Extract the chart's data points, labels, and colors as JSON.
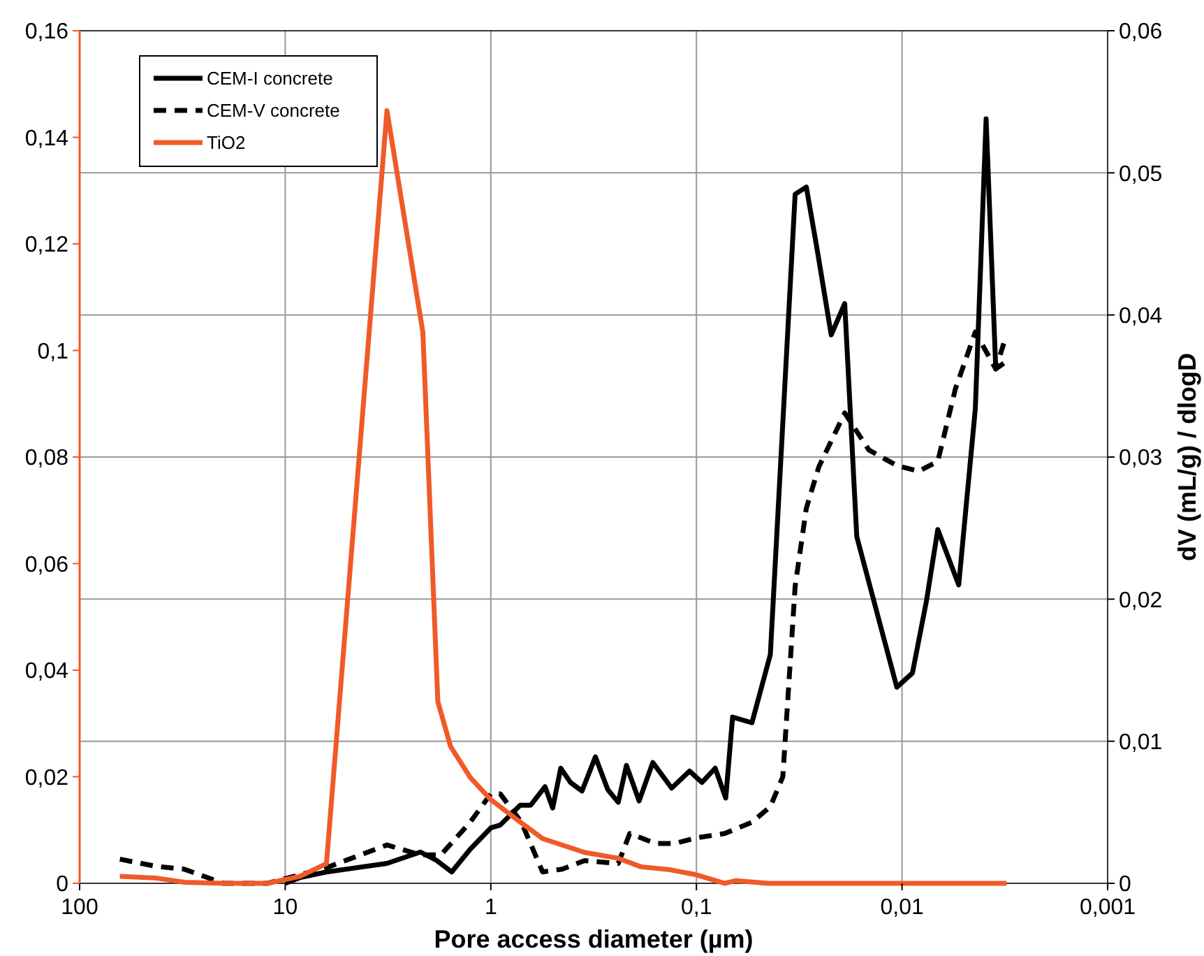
{
  "chart_data": {
    "type": "line",
    "xlabel": "Pore access diameter (µm)",
    "y2label": "dV (mL/g) / dlogD",
    "log": "x",
    "grid": true,
    "legend": "top left",
    "xlim": [
      100,
      0.001
    ],
    "xticks": [
      100,
      10,
      1,
      {
        "value": 0.1,
        "label": "0,1"
      },
      {
        "value": 0.01,
        "label": "0,01"
      },
      {
        "value": 0.001,
        "label": "0,001"
      }
    ],
    "ylim": [
      0,
      0.16
    ],
    "yticks": [
      0,
      {
        "value": 0.02,
        "label": "0,02"
      },
      {
        "value": 0.04,
        "label": "0,04"
      },
      {
        "value": 0.06,
        "label": "0,06"
      },
      {
        "value": 0.08,
        "label": "0,08"
      },
      {
        "value": 0.1,
        "label": "0,1"
      },
      {
        "value": 0.12,
        "label": "0,12"
      },
      {
        "value": 0.14,
        "label": "0,14"
      },
      {
        "value": 0.16,
        "label": "0,16"
      }
    ],
    "y2lim": [
      0,
      0.06
    ],
    "y2ticks": [
      0,
      {
        "value": 0.01,
        "label": "0,01"
      },
      {
        "value": 0.02,
        "label": "0,02"
      },
      {
        "value": 0.03,
        "label": "0,03"
      },
      {
        "value": 0.04,
        "label": "0,04"
      },
      {
        "value": 0.05,
        "label": "0,05"
      },
      {
        "value": 0.06,
        "label": "0,06"
      }
    ],
    "series": [
      {
        "name": "CEM-I concrete",
        "color": "#000000",
        "axis": "y2",
        "line_style": "solid",
        "x": [
          10,
          8.5,
          6.3,
          3.2,
          2.2,
          1.83,
          1.55,
          1.26,
          1.0,
          0.9,
          0.72,
          0.64,
          0.545,
          0.5,
          0.457,
          0.41,
          0.36,
          0.31,
          0.27,
          0.24,
          0.219,
          0.19,
          0.163,
          0.132,
          0.108,
          0.094,
          0.081,
          0.072,
          0.0667,
          0.0537,
          0.0437,
          0.0331,
          0.0292,
          0.0258,
          0.0221,
          0.019,
          0.0166,
          0.0106,
          0.0089,
          0.0076,
          0.0067,
          0.0053,
          0.0044,
          0.0039,
          0.0035,
          0.0032
        ],
        "values": [
          0,
          0.0004,
          0.0008,
          0.0014,
          0.0022,
          0.0016,
          0.0008,
          0.0024,
          0.0039,
          0.0041,
          0.0055,
          0.0055,
          0.0068,
          0.0053,
          0.0081,
          0.0071,
          0.0065,
          0.0089,
          0.0066,
          0.0057,
          0.0083,
          0.0058,
          0.0085,
          0.0067,
          0.0079,
          0.0071,
          0.0081,
          0.006,
          0.0117,
          0.0113,
          0.0161,
          0.0485,
          0.049,
          0.0445,
          0.0386,
          0.0408,
          0.0244,
          0.0138,
          0.0148,
          0.0199,
          0.0249,
          0.021,
          0.0334,
          0.0538,
          0.0362,
          0.0366
        ]
      },
      {
        "name": "CEM-V concrete",
        "color": "#000000",
        "axis": "y2",
        "line_style": "dashed",
        "x": [
          63.7,
          42.7,
          31,
          20,
          12.2,
          8.5,
          6.3,
          3.2,
          2.2,
          1.75,
          1.26,
          1.0,
          0.9,
          0.71,
          0.56,
          0.45,
          0.35,
          0.24,
          0.211,
          0.158,
          0.128,
          0.1,
          0.073,
          0.0537,
          0.0437,
          0.038,
          0.0331,
          0.0292,
          0.0254,
          0.019,
          0.0145,
          0.0106,
          0.0083,
          0.0067,
          0.0055,
          0.0044,
          0.0035,
          0.0032
        ],
        "values": [
          0.0017,
          0.0012,
          0.001,
          0,
          0,
          0.0006,
          0.0011,
          0.0027,
          0.002,
          0.002,
          0.0043,
          0.0063,
          0.0063,
          0.0043,
          0.0008,
          0.001,
          0.0016,
          0.0014,
          0.0035,
          0.0028,
          0.0028,
          0.0032,
          0.0035,
          0.0043,
          0.0054,
          0.0075,
          0.0209,
          0.0264,
          0.0293,
          0.0331,
          0.0305,
          0.0294,
          0.029,
          0.0297,
          0.0348,
          0.0388,
          0.0362,
          0.038
        ]
      },
      {
        "name": "TiO2",
        "color": "#f05a28",
        "axis": "y",
        "line_style": "solid",
        "x": [
          63.7,
          42.7,
          31,
          20,
          12.2,
          8.5,
          6.3,
          3.2,
          2.14,
          1.81,
          1.57,
          1.26,
          1.0,
          0.72,
          0.56,
          0.35,
          0.24,
          0.186,
          0.137,
          0.1,
          0.073,
          0.064,
          0.045,
          0.0031
        ],
        "values": [
          0.0013,
          0.001,
          0.0002,
          0,
          0,
          0.0013,
          0.0037,
          0.145,
          0.1034,
          0.0341,
          0.0257,
          0.0199,
          0.0157,
          0.0115,
          0.0084,
          0.0058,
          0.0047,
          0.0031,
          0.0026,
          0.0016,
          0,
          0.0005,
          0,
          0
        ]
      }
    ]
  }
}
